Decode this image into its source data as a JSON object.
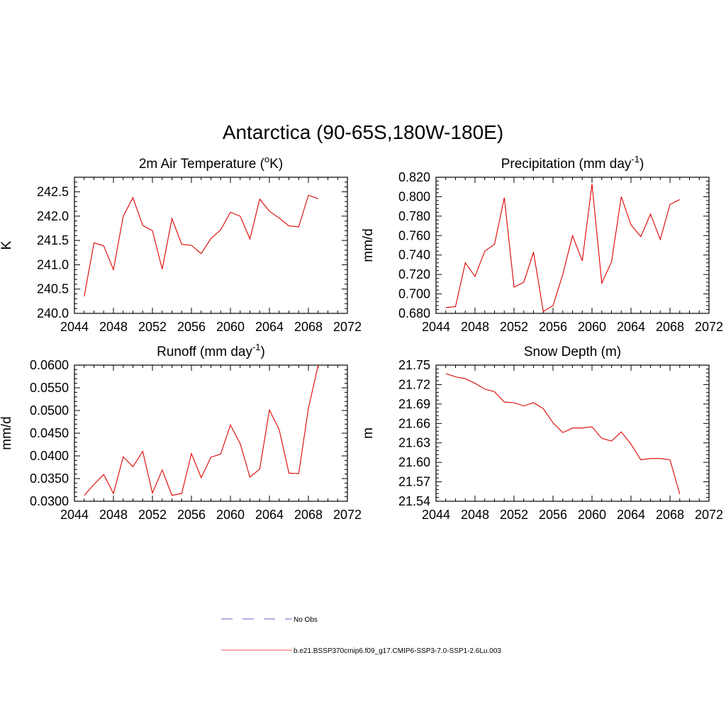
{
  "title": "Antarctica (90-65S,180W-180E)",
  "legend": {
    "items": [
      {
        "label": "No Obs",
        "color": "#9999dd",
        "style": "dashed"
      },
      {
        "label": "b.e21.BSSP370cmip6.f09_g17.CMIP6-SSP3-7.0-SSP1-2.6Lu.003",
        "color": "#ff5555",
        "style": "solid"
      }
    ]
  },
  "chart_data": [
    {
      "type": "line",
      "title_main": "2m Air Temperature (",
      "title_sup1": "o",
      "title_mid": "K)",
      "ylabel": "K",
      "xlim": [
        2044,
        2072
      ],
      "ylim": [
        240.0,
        242.8
      ],
      "xticks": [
        2044,
        2048,
        2052,
        2056,
        2060,
        2064,
        2068,
        2072
      ],
      "yticks": [
        "240.0",
        "240.5",
        "241.0",
        "241.5",
        "242.0",
        "242.5"
      ],
      "color": "#dd0000",
      "x": [
        2045,
        2046,
        2047,
        2048,
        2049,
        2050,
        2051,
        2052,
        2053,
        2054,
        2055,
        2056,
        2057,
        2058,
        2059,
        2060,
        2061,
        2062,
        2063,
        2064,
        2065,
        2066,
        2067,
        2068,
        2069
      ],
      "y": [
        240.35,
        241.45,
        241.39,
        240.9,
        242.0,
        242.38,
        241.81,
        241.7,
        240.91,
        241.95,
        241.42,
        241.4,
        241.23,
        241.54,
        241.72,
        242.08,
        242.0,
        241.53,
        242.35,
        242.1,
        241.96,
        241.8,
        241.78,
        242.43,
        242.36
      ]
    },
    {
      "type": "line",
      "title_main": "Precipitation (mm day",
      "title_sup1": "-1",
      "title_mid": ")",
      "ylabel": "mm/d",
      "xlim": [
        2044,
        2072
      ],
      "ylim": [
        0.68,
        0.82
      ],
      "xticks": [
        2044,
        2048,
        2052,
        2056,
        2060,
        2064,
        2068,
        2072
      ],
      "yticks": [
        "0.680",
        "0.700",
        "0.720",
        "0.740",
        "0.760",
        "0.780",
        "0.800",
        "0.820"
      ],
      "color": "#dd0000",
      "x": [
        2045,
        2046,
        2047,
        2048,
        2049,
        2050,
        2051,
        2052,
        2053,
        2054,
        2055,
        2056,
        2057,
        2058,
        2059,
        2060,
        2061,
        2062,
        2063,
        2064,
        2065,
        2066,
        2067,
        2068,
        2069
      ],
      "y": [
        0.686,
        0.687,
        0.732,
        0.718,
        0.744,
        0.751,
        0.799,
        0.707,
        0.712,
        0.743,
        0.682,
        0.688,
        0.72,
        0.76,
        0.734,
        0.813,
        0.711,
        0.733,
        0.8,
        0.771,
        0.759,
        0.782,
        0.756,
        0.792,
        0.797
      ]
    },
    {
      "type": "line",
      "title_main": "Runoff (mm day",
      "title_sup1": "-1",
      "title_mid": ")",
      "ylabel": "mm/d",
      "xlim": [
        2044,
        2072
      ],
      "ylim": [
        0.03,
        0.06
      ],
      "xticks": [
        2044,
        2048,
        2052,
        2056,
        2060,
        2064,
        2068,
        2072
      ],
      "yticks": [
        "0.0300",
        "0.0350",
        "0.0400",
        "0.0450",
        "0.0500",
        "0.0550",
        "0.0600"
      ],
      "color": "#dd0000",
      "x": [
        2045,
        2046,
        2047,
        2048,
        2049,
        2050,
        2051,
        2052,
        2053,
        2054,
        2055,
        2056,
        2057,
        2058,
        2059,
        2060,
        2061,
        2062,
        2063,
        2064,
        2065,
        2066,
        2067,
        2068,
        2069
      ],
      "y": [
        0.0313,
        0.0337,
        0.0359,
        0.0317,
        0.0398,
        0.0376,
        0.041,
        0.0318,
        0.0369,
        0.0313,
        0.0317,
        0.0405,
        0.0352,
        0.0397,
        0.0404,
        0.0468,
        0.0427,
        0.0353,
        0.0371,
        0.0501,
        0.0458,
        0.0362,
        0.0361,
        0.0505,
        0.06
      ]
    },
    {
      "type": "line",
      "title_main": "Snow Depth (m)",
      "title_sup1": "",
      "title_mid": "",
      "ylabel": "m",
      "xlim": [
        2044,
        2072
      ],
      "ylim": [
        21.54,
        21.75
      ],
      "xticks": [
        2044,
        2048,
        2052,
        2056,
        2060,
        2064,
        2068,
        2072
      ],
      "yticks": [
        "21.54",
        "21.57",
        "21.60",
        "21.63",
        "21.66",
        "21.69",
        "21.72",
        "21.75"
      ],
      "color": "#dd0000",
      "x": [
        2045,
        2046,
        2047,
        2048,
        2049,
        2050,
        2051,
        2052,
        2053,
        2054,
        2055,
        2056,
        2057,
        2058,
        2059,
        2060,
        2061,
        2062,
        2063,
        2064,
        2065,
        2066,
        2067,
        2068,
        2069
      ],
      "y": [
        21.737,
        21.732,
        21.729,
        21.722,
        21.713,
        21.709,
        21.693,
        21.692,
        21.687,
        21.692,
        21.683,
        21.661,
        21.646,
        21.653,
        21.653,
        21.655,
        21.637,
        21.633,
        21.647,
        21.628,
        21.604,
        21.606,
        21.606,
        21.604,
        21.551
      ]
    }
  ]
}
